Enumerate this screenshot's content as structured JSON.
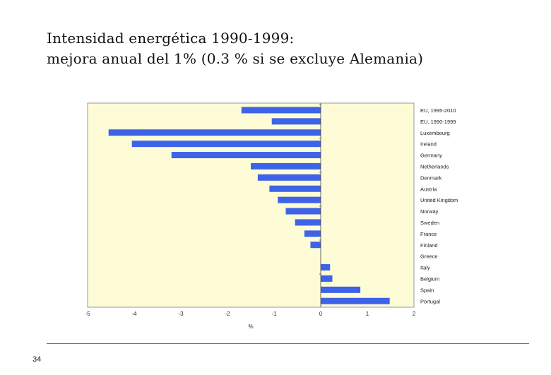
{
  "slide": {
    "title_line1": "Intensidad energética 1990-1999:",
    "title_line2": "mejora anual del 1% (0.3 % si se excluye Alemania)",
    "page_number": "34"
  },
  "colors": {
    "plot_bg": "#fdfcd6",
    "bar": "#3d63e8",
    "footer_line": "#5b8a3a"
  },
  "chart_data": {
    "type": "bar",
    "orientation": "horizontal",
    "title": "",
    "xlabel": "%",
    "ylabel": "",
    "xlim": [
      -5,
      2
    ],
    "x_ticks": [
      -5,
      -4,
      -3,
      -2,
      -1,
      0,
      1,
      2
    ],
    "grid": false,
    "categories": [
      "EU, 1995-2010",
      "EU, 1990-1999",
      "Luxembourg",
      "Ireland",
      "Germany",
      "Netherlands",
      "Denmark",
      "Austria",
      "United Kingdom",
      "Norway",
      "Sweden",
      "France",
      "Finland",
      "Greece",
      "Italy",
      "Belgium",
      "Spain",
      "Portugal"
    ],
    "values": [
      -1.7,
      -1.05,
      -4.55,
      -4.05,
      -3.2,
      -1.5,
      -1.35,
      -1.1,
      -0.92,
      -0.75,
      -0.55,
      -0.35,
      -0.22,
      0.0,
      0.2,
      0.25,
      0.85,
      1.48
    ]
  }
}
